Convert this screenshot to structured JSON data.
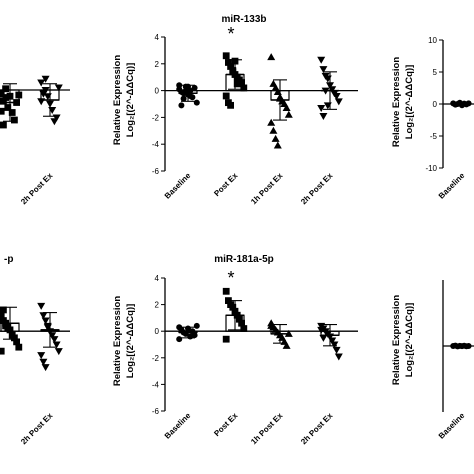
{
  "chart_data": [
    {
      "id": "top-left-partial",
      "type": "scatter",
      "title": "",
      "ylabel": "",
      "categories": [
        "",
        "2h Post Ex"
      ],
      "series": [
        {
          "marker": "square",
          "values": [
            -0.3,
            -0.9,
            -0.6,
            -1.4,
            -0.5,
            -1.8,
            -2.4,
            -1.0,
            -0.4,
            -1.7,
            -2.8,
            0.1
          ]
        },
        {
          "marker": "triangle-down",
          "values": [
            0.6,
            -0.2,
            0.0,
            -0.5,
            -1.1,
            -1.6,
            -2.5,
            -2.2,
            0.2,
            -0.9,
            -0.3,
            0.9
          ]
        }
      ],
      "bars": [
        -1.0,
        -0.8
      ],
      "err": [
        1.5,
        1.3
      ]
    },
    {
      "id": "mir-133b",
      "type": "scatter",
      "title": "miR-133b",
      "ylabel": "Relative Expression",
      "ylabel2": "Log₂[(2^-ΔΔCq)]",
      "yticks": [
        "4",
        "2",
        "0",
        "-2",
        "-4",
        "-6"
      ],
      "ylim": [
        -6,
        4
      ],
      "categories": [
        "Baseline",
        "Post Ex",
        "1h Post Ex",
        "2h Post Ex"
      ],
      "series": [
        {
          "marker": "circle",
          "values": [
            0.1,
            -0.1,
            -0.2,
            0.3,
            -0.3,
            0.0,
            -0.5,
            0.2,
            -0.9,
            0.4,
            -1.1,
            -0.6,
            0.0,
            0.3,
            -0.4
          ]
        },
        {
          "marker": "square",
          "values": [
            2.6,
            2.1,
            1.8,
            1.5,
            1.2,
            1.0,
            0.8,
            0.6,
            0.2,
            -0.4,
            -0.9,
            -1.1,
            1.4,
            2.2,
            0.5
          ]
        },
        {
          "marker": "triangle-up",
          "values": [
            2.5,
            0.5,
            0.2,
            -0.1,
            -0.5,
            -0.8,
            -1.0,
            -1.3,
            -1.8,
            -2.4,
            -3.0,
            -3.6,
            -4.1,
            -0.6
          ]
        },
        {
          "marker": "triangle-down",
          "values": [
            2.3,
            1.6,
            1.1,
            0.9,
            0.4,
            0.1,
            -0.2,
            -0.4,
            -0.8,
            -1.3,
            -1.9,
            0.0,
            -1.1
          ]
        }
      ],
      "bars": [
        -0.2,
        1.2,
        -0.7,
        0.0
      ],
      "err": [
        0.6,
        1.1,
        1.5,
        1.4
      ],
      "annotations": [
        {
          "text": "*",
          "category": "Post Ex"
        }
      ]
    },
    {
      "id": "top-right-partial",
      "type": "scatter",
      "title": "",
      "ylabel": "Relative Expression",
      "ylabel2": "Log₂[(2^-ΔΔCq)]",
      "yticks": [
        "10",
        "5",
        "0",
        "-5",
        "-10"
      ],
      "ylim": [
        -10,
        10
      ],
      "categories": [
        "Baseline"
      ],
      "series": [
        {
          "marker": "circle",
          "values": [
            0.1,
            -0.1,
            0.0,
            0.2,
            -0.2,
            0.05,
            -0.05,
            0.1
          ]
        }
      ],
      "bars": [
        0.0
      ],
      "err": [
        0.2
      ]
    },
    {
      "id": "bottom-left-partial",
      "type": "scatter",
      "title": "-p",
      "ylabel": "",
      "categories": [
        "",
        "2h Post Ex"
      ],
      "series": [
        {
          "marker": "square",
          "values": [
            1.2,
            0.8,
            0.4,
            0.3,
            0.1,
            -0.3,
            -0.5,
            -0.8,
            -1.2,
            -1.5,
            1.6,
            0.6
          ]
        },
        {
          "marker": "triangle-down",
          "values": [
            1.9,
            1.2,
            0.8,
            0.4,
            0.0,
            -0.3,
            -0.6,
            -1.0,
            -1.5,
            -1.8,
            -2.3,
            -2.7,
            0.3
          ]
        }
      ],
      "bars": [
        0.6,
        0.1
      ],
      "err": [
        1.2,
        1.3
      ]
    },
    {
      "id": "mir-181a-5p",
      "type": "scatter",
      "title": "miR-181a-5p",
      "ylabel": "Relative Expression",
      "ylabel2": "Log₂[(2^-ΔΔCq)]",
      "yticks": [
        "4",
        "2",
        "0",
        "-2",
        "-4",
        "-6"
      ],
      "ylim": [
        -6,
        4
      ],
      "categories": [
        "Baseline",
        "Post Ex",
        "1h Post Ex",
        "2h Post Ex"
      ],
      "series": [
        {
          "marker": "circle",
          "values": [
            0.3,
            0.1,
            -0.1,
            -0.2,
            0.2,
            -0.4,
            0.0,
            -0.3,
            0.4,
            -0.6,
            0.1
          ]
        },
        {
          "marker": "square",
          "values": [
            3.0,
            2.3,
            2.0,
            1.8,
            1.5,
            1.2,
            0.9,
            0.6,
            0.2,
            -0.6
          ]
        },
        {
          "marker": "triangle-up",
          "values": [
            0.6,
            0.3,
            0.1,
            -0.1,
            -0.3,
            -0.5,
            -0.8,
            -1.1,
            -0.2,
            0.4
          ]
        },
        {
          "marker": "triangle-down",
          "values": [
            0.4,
            0.2,
            0.0,
            -0.2,
            -0.4,
            -0.7,
            -1.0,
            -1.4,
            -1.9,
            0.1,
            -0.5
          ]
        }
      ],
      "bars": [
        -0.1,
        1.2,
        -0.2,
        -0.3
      ],
      "err": [
        0.4,
        1.1,
        0.7,
        0.8
      ],
      "annotations": [
        {
          "text": "*",
          "category": "Post Ex"
        }
      ]
    },
    {
      "id": "bottom-right-partial",
      "type": "scatter",
      "title": "",
      "ylabel": "Relative Expression",
      "ylabel2": "Log₂[(2^-ΔΔCq)]",
      "categories": [
        "Baseline"
      ],
      "series": [
        {
          "marker": "circle",
          "values": [
            0.0,
            0.05,
            -0.05,
            0.02,
            -0.02,
            0.03,
            -0.03,
            0.0
          ]
        }
      ],
      "bars": [
        0.0
      ],
      "err": [
        0.05
      ]
    }
  ]
}
